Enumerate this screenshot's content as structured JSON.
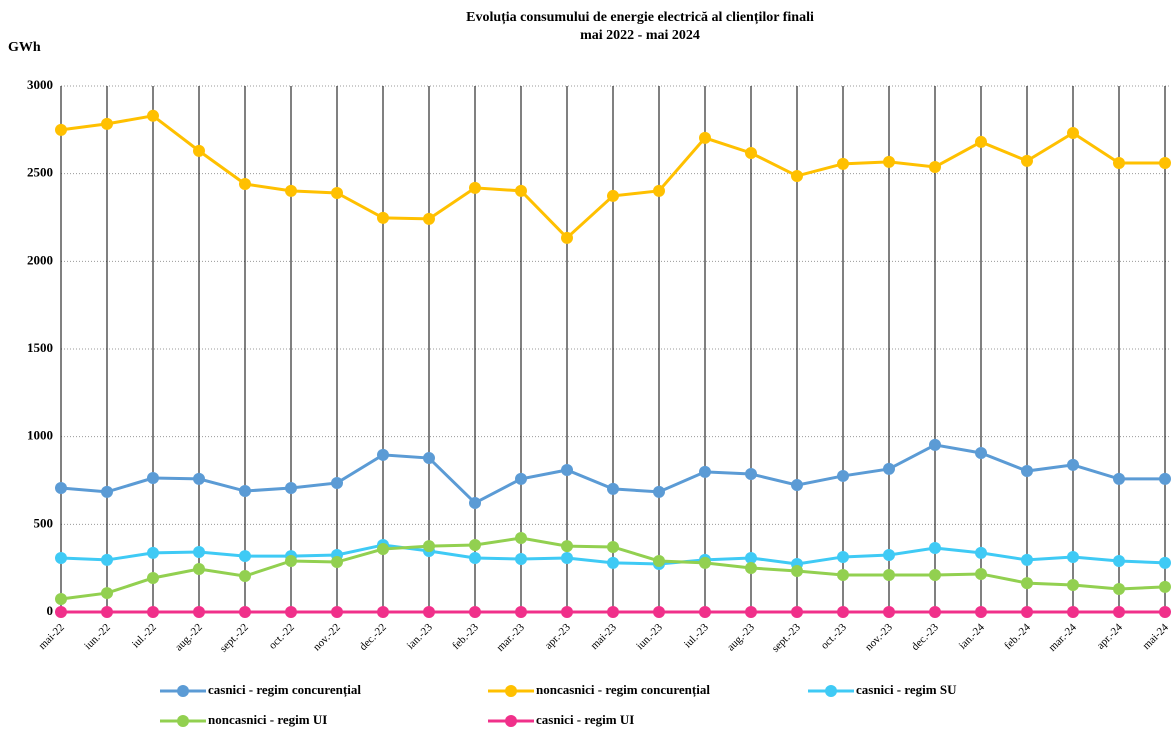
{
  "chart_data": {
    "type": "line",
    "title": "Evoluția consumului de energie electrică al clienților finali",
    "subtitle": "mai 2022 - mai 2024",
    "y_label": "GWh",
    "categories": [
      "mai-22",
      "iun.-22",
      "iul.-22",
      "aug.-22",
      "sept.-22",
      "oct.-22",
      "nov.-22",
      "dec.-22",
      "ian.-23",
      "feb.-23",
      "mar.-23",
      "apr.-23",
      "mai-23",
      "iun.-23",
      "iul.-23",
      "aug.-23",
      "sept.-23",
      "oct.-23",
      "nov.-23",
      "dec.-23",
      "ian.-24",
      "feb.-24",
      "mar.-24",
      "apr.-24",
      "mai-24"
    ],
    "series": [
      {
        "name": "casnici - regim concurențial",
        "color": "#5b9bd5",
        "values": [
          707,
          685,
          764,
          759,
          690,
          707,
          736,
          896,
          878,
          622,
          759,
          810,
          702,
          685,
          799,
          787,
          724,
          776,
          816,
          953,
          907,
          804,
          839,
          759,
          759
        ]
      },
      {
        "name": "noncasnici - regim concurențial",
        "color": "#ffc000",
        "values": [
          2750,
          2784,
          2830,
          2630,
          2441,
          2402,
          2390,
          2248,
          2242,
          2419,
          2402,
          2134,
          2373,
          2402,
          2704,
          2618,
          2487,
          2556,
          2567,
          2538,
          2681,
          2573,
          2732,
          2561,
          2561
        ]
      },
      {
        "name": "casnici - regim SU",
        "color": "#3fcaf5",
        "values": [
          308,
          297,
          337,
          342,
          319,
          319,
          325,
          382,
          348,
          308,
          302,
          308,
          280,
          274,
          297,
          308,
          274,
          314,
          325,
          365,
          337,
          297,
          314,
          291,
          280
        ]
      },
      {
        "name": "noncasnici - regim UI",
        "color": "#92d050",
        "values": [
          74,
          108,
          194,
          245,
          205,
          291,
          285,
          359,
          376,
          382,
          422,
          376,
          371,
          291,
          280,
          251,
          234,
          211,
          211,
          211,
          217,
          165,
          154,
          131,
          143
        ]
      },
      {
        "name": "casnici - regim UI",
        "color": "#f0308a",
        "values": [
          0,
          0,
          0,
          0,
          0,
          0,
          0,
          0,
          0,
          0,
          0,
          0,
          0,
          0,
          0,
          0,
          0,
          0,
          0,
          0,
          0,
          0,
          0,
          0,
          0
        ]
      }
    ],
    "ylim": [
      0,
      3000
    ],
    "yticks": [
      0,
      500,
      1000,
      1500,
      2000,
      2500,
      3000
    ],
    "grid": true
  }
}
